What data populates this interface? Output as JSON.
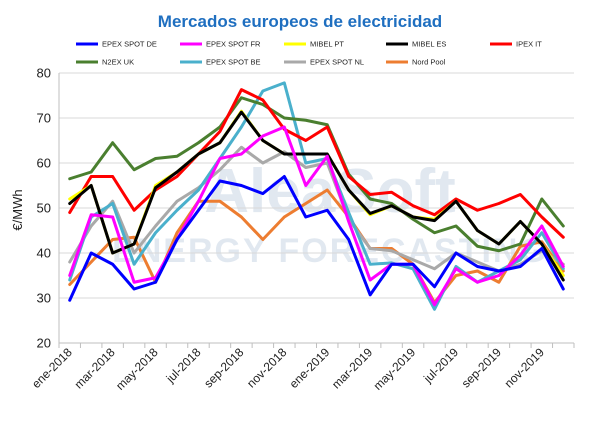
{
  "chart_data": {
    "type": "line",
    "title": "Mercados europeos de electricidad",
    "ylabel": "€/MWh",
    "xlabel": "",
    "ylim": [
      20,
      80
    ],
    "yticks": [
      20,
      30,
      40,
      50,
      60,
      70,
      80
    ],
    "grid": true,
    "legend_position": "top",
    "watermark": [
      "AleaSoft",
      "ENERGY FORECASTING"
    ],
    "x": [
      "ene-2018",
      "feb-2018",
      "mar-2018",
      "abr-2018",
      "may-2018",
      "jun-2018",
      "jul-2018",
      "ago-2018",
      "sep-2018",
      "oct-2018",
      "nov-2018",
      "dic-2018",
      "ene-2019",
      "feb-2019",
      "mar-2019",
      "abr-2019",
      "may-2019",
      "jun-2019",
      "jul-2019",
      "ago-2019",
      "sep-2019",
      "oct-2019",
      "nov-2019",
      "dic-2019"
    ],
    "xtick_labels": [
      "ene-2018",
      "mar-2018",
      "may-2018",
      "jul-2018",
      "sep-2018",
      "nov-2018",
      "ene-2019",
      "mar-2019",
      "may-2019",
      "jul-2019",
      "sep-2019",
      "nov-2019"
    ],
    "series": [
      {
        "name": "EPEX SPOT DE",
        "color": "#0000ff",
        "values": [
          29.5,
          40,
          37.5,
          32,
          33.5,
          43,
          49.5,
          56,
          55,
          53.2,
          57,
          48,
          49.5,
          43,
          30.7,
          37.5,
          37.5,
          32.5,
          40,
          37,
          36,
          37,
          41,
          32
        ]
      },
      {
        "name": "EPEX SPOT FR",
        "color": "#ff00ff",
        "values": [
          35,
          48.5,
          48,
          33.5,
          34.5,
          43,
          51.5,
          61,
          62,
          66,
          68,
          55,
          61.5,
          47,
          34,
          37.5,
          37.5,
          28.5,
          36.5,
          33.5,
          35,
          39.5,
          46,
          37
        ]
      },
      {
        "name": "MIBEL PT",
        "color": "#ffff00",
        "values": [
          52,
          55,
          40,
          42,
          55,
          58,
          62,
          64.5,
          71.5,
          65,
          62,
          62,
          62,
          54,
          48.5,
          50.5,
          48,
          47.5,
          51.5,
          45,
          42,
          47,
          42,
          35
        ]
      },
      {
        "name": "MIBEL ES",
        "color": "#000000",
        "values": [
          51,
          55,
          40,
          42,
          54.5,
          58,
          62,
          64.5,
          71.3,
          65,
          62,
          62,
          62,
          54,
          48.8,
          50.5,
          48,
          47.2,
          51.5,
          45,
          42,
          47,
          42,
          34
        ]
      },
      {
        "name": "IPEX IT",
        "color": "#ff0000",
        "values": [
          49,
          57,
          57,
          49.5,
          54,
          57,
          62,
          67,
          76.3,
          74,
          67.5,
          65,
          68,
          57,
          53,
          53.5,
          50.5,
          48.5,
          52,
          49.5,
          51,
          53,
          48,
          43.5
        ]
      },
      {
        "name": "N2EX UK",
        "color": "#4a7f2f",
        "values": [
          56.5,
          58,
          64.5,
          58.5,
          61,
          61.5,
          64.5,
          68,
          74.5,
          73,
          70,
          69.5,
          68.5,
          57.5,
          52,
          51,
          47.5,
          44.5,
          46,
          41.5,
          40.5,
          42,
          52,
          46
        ]
      },
      {
        "name": "EPEX SPOT BE",
        "color": "#4ab0cc",
        "values": [
          34,
          48,
          51,
          37.5,
          44.5,
          49.5,
          54,
          61,
          68,
          76,
          77.8,
          60,
          61,
          49,
          37.5,
          37.8,
          36.5,
          27.5,
          37,
          33.5,
          36,
          38.5,
          44.5,
          36.5
        ]
      },
      {
        "name": "EPEX SPOT NL",
        "color": "#a9a9a9",
        "values": [
          38,
          46,
          51.5,
          40,
          46,
          51.5,
          54.5,
          58.5,
          63.5,
          60,
          62.5,
          59,
          60,
          47.5,
          41,
          40.5,
          38.5,
          36.5,
          40,
          38,
          36,
          37.5,
          40.5,
          37.5
        ]
      },
      {
        "name": "Nord Pool",
        "color": "#ed7d31",
        "values": [
          33,
          38,
          43,
          43.5,
          33.5,
          44.5,
          51.5,
          51.5,
          48,
          43,
          48,
          51,
          54,
          48,
          41,
          41,
          37.5,
          29,
          35,
          36,
          33.5,
          41.5,
          42.5,
          36
        ]
      }
    ]
  }
}
